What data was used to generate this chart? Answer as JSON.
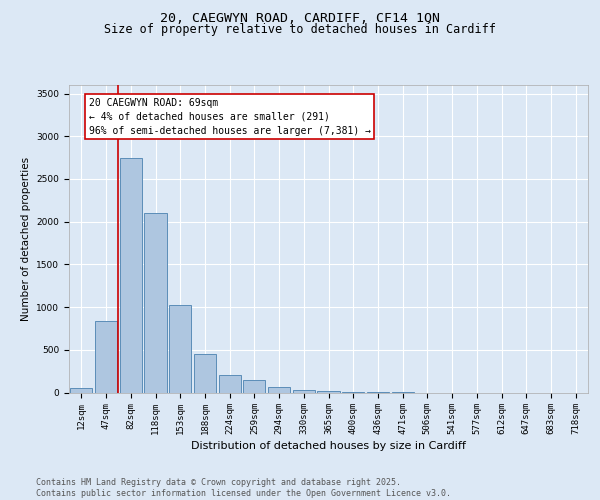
{
  "title_line1": "20, CAEGWYN ROAD, CARDIFF, CF14 1QN",
  "title_line2": "Size of property relative to detached houses in Cardiff",
  "xlabel": "Distribution of detached houses by size in Cardiff",
  "ylabel": "Number of detached properties",
  "categories": [
    "12sqm",
    "47sqm",
    "82sqm",
    "118sqm",
    "153sqm",
    "188sqm",
    "224sqm",
    "259sqm",
    "294sqm",
    "330sqm",
    "365sqm",
    "400sqm",
    "436sqm",
    "471sqm",
    "506sqm",
    "541sqm",
    "577sqm",
    "612sqm",
    "647sqm",
    "683sqm",
    "718sqm"
  ],
  "values": [
    55,
    840,
    2750,
    2100,
    1030,
    455,
    205,
    150,
    65,
    35,
    20,
    8,
    4,
    2,
    0,
    0,
    0,
    0,
    0,
    0,
    0
  ],
  "bar_color": "#aec6e0",
  "bar_edge_color": "#5b8db8",
  "vline_color": "#cc0000",
  "vline_pos": 1.5,
  "annotation_text": "20 CAEGWYN ROAD: 69sqm\n← 4% of detached houses are smaller (291)\n96% of semi-detached houses are larger (7,381) →",
  "ylim": [
    0,
    3600
  ],
  "yticks": [
    0,
    500,
    1000,
    1500,
    2000,
    2500,
    3000,
    3500
  ],
  "background_color": "#dce8f5",
  "plot_bg_color": "#dce8f5",
  "grid_color": "#ffffff",
  "footer_text": "Contains HM Land Registry data © Crown copyright and database right 2025.\nContains public sector information licensed under the Open Government Licence v3.0.",
  "title_fontsize": 9.5,
  "subtitle_fontsize": 8.5,
  "ylabel_fontsize": 7.5,
  "xlabel_fontsize": 8,
  "tick_fontsize": 6.5,
  "annotation_fontsize": 7,
  "footer_fontsize": 6
}
